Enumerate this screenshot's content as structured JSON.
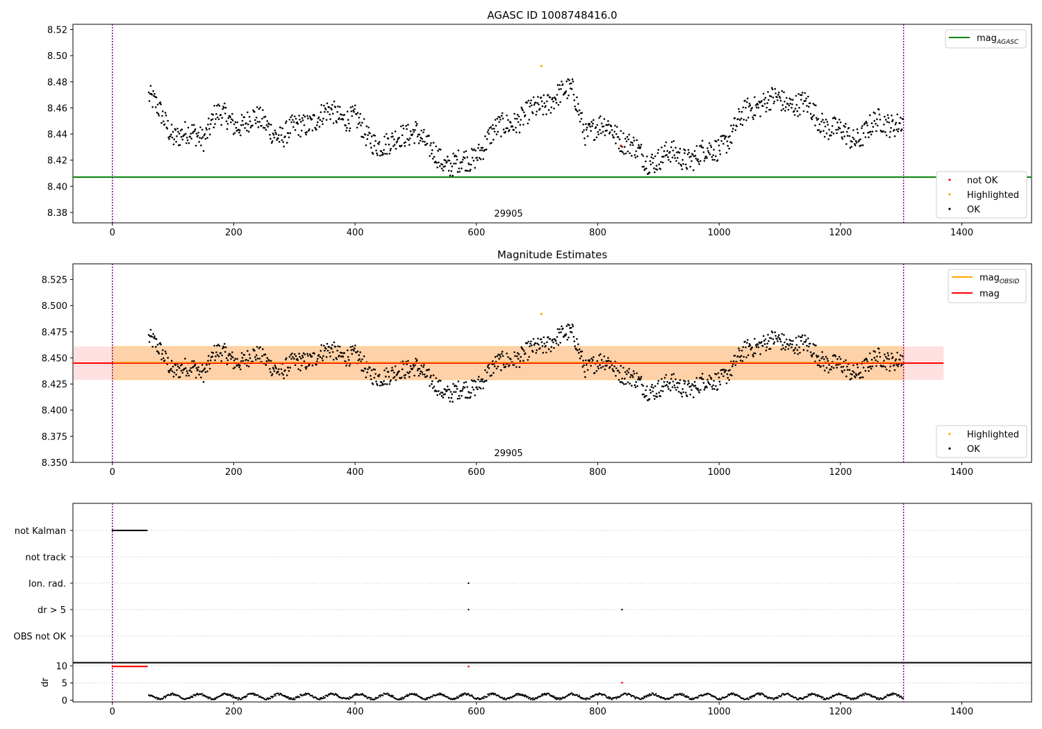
{
  "chart_data": [
    {
      "type": "scatter",
      "title": "AGASC ID 1008748416.0",
      "xlim": [
        -65,
        1515
      ],
      "ylim": [
        8.372,
        8.524
      ],
      "x_ticks": [
        "0",
        "200",
        "400",
        "600",
        "800",
        "1000",
        "1200",
        "1400"
      ],
      "y_ticks": [
        "8.38",
        "8.40",
        "8.42",
        "8.44",
        "8.46",
        "8.48",
        "8.50",
        "8.52"
      ],
      "annotation": "29905",
      "vlines": [
        0,
        1304
      ],
      "mag_agasc": 8.407,
      "legend_top": [
        "mag",
        "AGASC"
      ],
      "legend_bottom": [
        "not OK",
        "Highlighted",
        "OK"
      ],
      "highlighted_points": [
        {
          "x": 707,
          "y": 8.492
        }
      ],
      "not_ok_points": [
        {
          "x": 838,
          "y": 8.431
        }
      ],
      "series_note": "OK points: ~1250 samples, y in 8.40–8.49"
    },
    {
      "type": "scatter",
      "title": "Magnitude Estimates",
      "xlim": [
        -65,
        1515
      ],
      "ylim": [
        8.35,
        8.54
      ],
      "x_ticks": [
        "0",
        "200",
        "400",
        "600",
        "800",
        "1000",
        "1200",
        "1400"
      ],
      "y_ticks": [
        "8.350",
        "8.375",
        "8.400",
        "8.425",
        "8.450",
        "8.475",
        "8.500",
        "8.525"
      ],
      "annotation": "29905",
      "vlines": [
        0,
        1304
      ],
      "mag": 8.445,
      "mag_obsid_band": [
        8.429,
        8.461
      ],
      "mag_band": [
        8.429,
        8.461
      ],
      "band_x": [
        -65,
        1370
      ],
      "legend_top": [
        "mag",
        "OBSID",
        "mag"
      ],
      "legend_bottom": [
        "Highlighted",
        "OK"
      ],
      "highlighted_points": [
        {
          "x": 707,
          "y": 8.492
        }
      ]
    },
    {
      "type": "scatter",
      "title": "",
      "flag_labels": [
        "not Kalman",
        "not track",
        "Ion. rad.",
        "dr > 5",
        "OBS not OK"
      ],
      "flags": {
        "not Kalman": {
          "x_range": [
            0,
            58
          ]
        },
        "Ion. rad.": {
          "x": [
            587
          ]
        },
        "dr > 5": {
          "x": [
            587,
            840
          ]
        }
      },
      "xlim": [
        -65,
        1515
      ],
      "vlines": [
        0,
        1304
      ]
    },
    {
      "type": "scatter",
      "title": "",
      "ylabel": "dr",
      "xlim": [
        -65,
        1515
      ],
      "ylim": [
        -0.5,
        11
      ],
      "x_ticks": [
        "0",
        "200",
        "400",
        "600",
        "800",
        "1000",
        "1200",
        "1400"
      ],
      "y_ticks": [
        "0",
        "5",
        "10"
      ],
      "vlines": [
        0,
        1304
      ],
      "clipped_points": {
        "x_range": [
          0,
          58
        ],
        "y": 9.8
      },
      "outliers": [
        {
          "x": 587,
          "y": 9.8
        },
        {
          "x": 840,
          "y": 5.1
        }
      ],
      "series_note": "dr values ~0.3–2.5 for x 60–1304"
    }
  ],
  "colors": {
    "ok": "#000000",
    "highlighted": "#ffa500",
    "not_ok": "#ff0000",
    "agasc_line": "#008000",
    "mag_line": "#ff0000",
    "obsid_line": "#ffa500",
    "vline": "#800080",
    "band_orange": "#ffa500",
    "band_red": "#ff0000"
  }
}
